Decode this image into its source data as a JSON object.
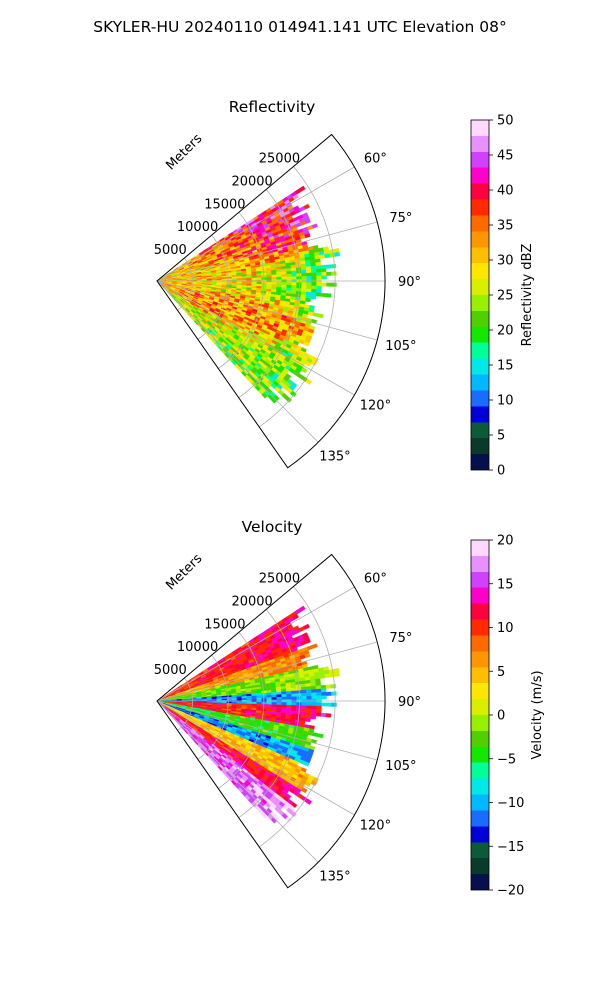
{
  "figure": {
    "suptitle": "SKYLER-HU  20240110  014941.141 UTC Elevation 08°"
  },
  "chart_data": [
    {
      "type": "heatmap",
      "projection": "polar-sector",
      "title": "Reflectivity",
      "radial_label": "Meters",
      "radial_ticks": [
        5000,
        10000,
        15000,
        20000,
        25000
      ],
      "radial_tick_labels": [
        "5000",
        "10000",
        "15000",
        "20000",
        "25000"
      ],
      "radial_range": [
        0,
        32000
      ],
      "azimuth_range_deg": [
        50,
        145
      ],
      "azimuth_ticks": [
        60,
        75,
        90,
        105,
        120,
        135
      ],
      "azimuth_tick_labels": [
        "60°",
        "75°",
        "90°",
        "105°",
        "120°",
        "135°"
      ],
      "grid": true,
      "data_coverage": {
        "az_start": 57,
        "az_end": 137,
        "typical_max_range": 24000
      },
      "field_regions": [
        {
          "az_center": 63,
          "range_center": 19000,
          "value": 40
        },
        {
          "az_center": 72,
          "range_center": 14000,
          "value": 35
        },
        {
          "az_center": 80,
          "range_center": 8000,
          "value": 30
        },
        {
          "az_center": 90,
          "range_center": 15000,
          "value": 28
        },
        {
          "az_center": 92,
          "range_center": 22000,
          "value": 20
        },
        {
          "az_center": 110,
          "range_center": 16000,
          "value": 33
        },
        {
          "az_center": 125,
          "range_center": 19000,
          "value": 25
        },
        {
          "az_center": 130,
          "range_center": 22000,
          "value": 20
        }
      ],
      "colorbar": {
        "label": "Reflectivity dBZ",
        "min": 0,
        "max": 50,
        "ticks": [
          0,
          5,
          10,
          15,
          20,
          25,
          30,
          35,
          40,
          45,
          50
        ],
        "tick_labels": [
          "0",
          "5",
          "10",
          "15",
          "20",
          "25",
          "30",
          "35",
          "40",
          "45",
          "50"
        ]
      }
    },
    {
      "type": "heatmap",
      "projection": "polar-sector",
      "title": "Velocity",
      "radial_label": "Meters",
      "radial_ticks": [
        5000,
        10000,
        15000,
        20000,
        25000
      ],
      "radial_tick_labels": [
        "5000",
        "10000",
        "15000",
        "20000",
        "25000"
      ],
      "radial_range": [
        0,
        32000
      ],
      "azimuth_range_deg": [
        50,
        145
      ],
      "azimuth_ticks": [
        60,
        75,
        90,
        105,
        120,
        135
      ],
      "azimuth_tick_labels": [
        "60°",
        "75°",
        "90°",
        "105°",
        "120°",
        "135°"
      ],
      "grid": true,
      "data_coverage": {
        "az_start": 57,
        "az_end": 137,
        "typical_max_range": 24000
      },
      "field_bands": [
        {
          "az_from": 57,
          "az_to": 70,
          "value": 10
        },
        {
          "az_from": 70,
          "az_to": 78,
          "value": 5
        },
        {
          "az_from": 78,
          "az_to": 86,
          "value": -3
        },
        {
          "az_from": 86,
          "az_to": 92,
          "value": -12
        },
        {
          "az_from": 92,
          "az_to": 100,
          "value": 10
        },
        {
          "az_from": 100,
          "az_to": 108,
          "value": -5
        },
        {
          "az_from": 108,
          "az_to": 114,
          "value": -12
        },
        {
          "az_from": 114,
          "az_to": 122,
          "value": 3
        },
        {
          "az_from": 122,
          "az_to": 128,
          "value": 10
        },
        {
          "az_from": 128,
          "az_to": 137,
          "value": 15
        }
      ],
      "colorbar": {
        "label": "Velocity (m/s)",
        "min": -20,
        "max": 20,
        "ticks": [
          -20,
          -15,
          -10,
          -5,
          0,
          5,
          10,
          15,
          20
        ],
        "tick_labels": [
          "−20",
          "−15",
          "−10",
          "−5",
          "0",
          "5",
          "10",
          "15",
          "20"
        ]
      }
    }
  ],
  "colormap_stops": [
    "#06104f",
    "#0a3a2a",
    "#0b5a3a",
    "#0000d8",
    "#1a6cff",
    "#00b8ff",
    "#00e8e8",
    "#00ff99",
    "#12e800",
    "#50d000",
    "#96f000",
    "#d8f000",
    "#ffe600",
    "#ffbf00",
    "#ff9500",
    "#ff6a00",
    "#ff2a00",
    "#ff0040",
    "#ff00c8",
    "#d040ff",
    "#e890ff",
    "#ffd8ff"
  ]
}
